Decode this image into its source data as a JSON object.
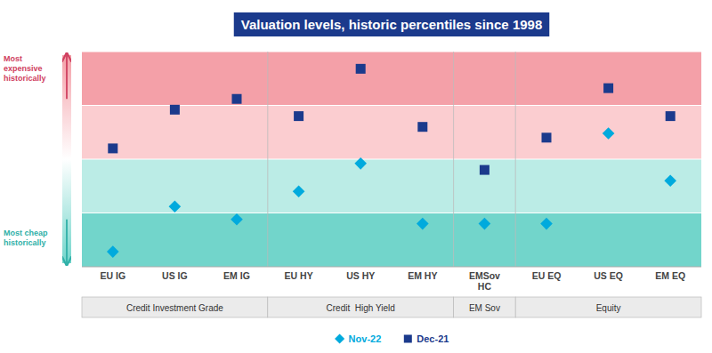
{
  "chart_data": {
    "type": "scatter",
    "title": "Valuation levels, historic percentiles since 1998",
    "categories": [
      "EU IG",
      "US IG",
      "EM IG",
      "EU HY",
      "US HY",
      "EM HY",
      "EMSov\nHC",
      "EU EQ",
      "US EQ",
      "EM EQ"
    ],
    "series": [
      {
        "name": "Nov-22",
        "color": "#00AADD",
        "marker": "diamond",
        "values": [
          7,
          28,
          22,
          35,
          48,
          20,
          20,
          20,
          62,
          40
        ]
      },
      {
        "name": "Dec-21",
        "color": "#1B3A8C",
        "marker": "square",
        "values": [
          55,
          73,
          78,
          70,
          92,
          65,
          45,
          60,
          83,
          70
        ]
      }
    ],
    "ylim": [
      0,
      100
    ],
    "yticks": [
      0,
      25,
      50,
      75,
      100
    ],
    "tick_labels": "x",
    "grid": true,
    "legend": "bottom",
    "groups": [
      {
        "label": "Credit Investment Grade",
        "categories": [
          "EU IG",
          "US IG",
          "EM IG"
        ]
      },
      {
        "label": "Credit  High Yield",
        "categories": [
          "EU HY",
          "US HY",
          "EM HY"
        ]
      },
      {
        "label": "EM Sov",
        "categories": [
          "EMSov\nHC"
        ]
      },
      {
        "label": "Equity",
        "categories": [
          "EU EQ",
          "US EQ",
          "EM EQ"
        ]
      }
    ],
    "annotations": [
      "Most\nexpensive\nhistorically",
      "Most cheap\nhistorically"
    ]
  }
}
